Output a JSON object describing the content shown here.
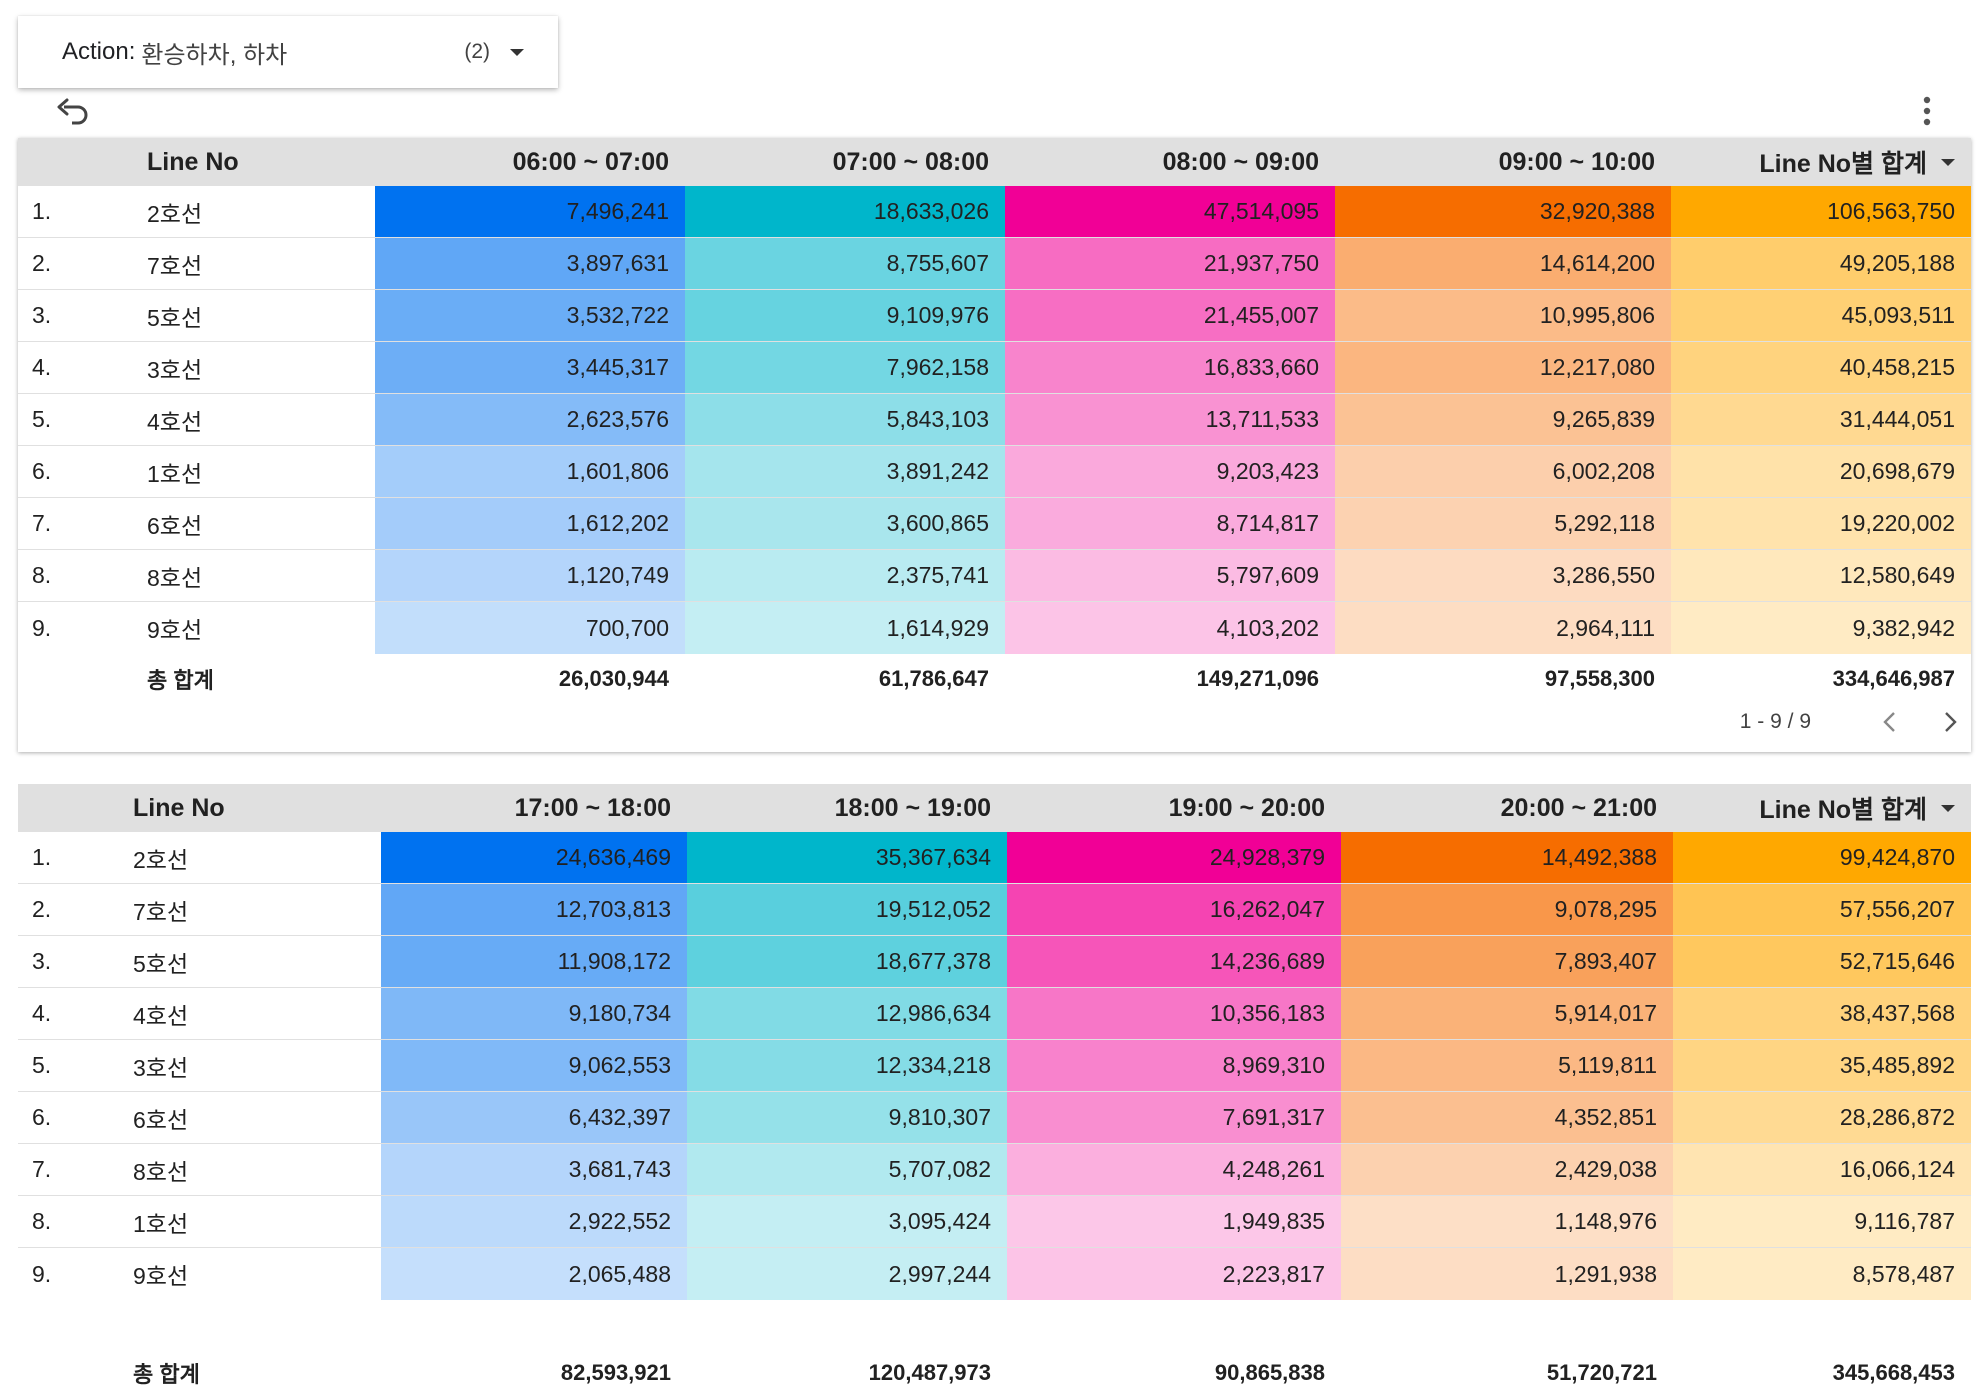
{
  "filter": {
    "label": "Action:",
    "values": "환승하차, 하차",
    "count": "(2)"
  },
  "icons": {
    "undo": "undo-icon",
    "more": "more-vert-icon",
    "dropdown": "caret-down-icon",
    "prev": "chevron-left-icon",
    "next": "chevron-right-icon"
  },
  "table1": {
    "headers": [
      "Line No",
      "06:00 ~ 07:00",
      "07:00 ~ 08:00",
      "08:00 ~ 09:00",
      "09:00 ~ 10:00",
      "Line No별 합계"
    ],
    "rows": [
      {
        "idx": "1.",
        "line": "2호선",
        "v": [
          "7,496,241",
          "18,633,026",
          "47,514,095",
          "32,920,388",
          "106,563,750"
        ]
      },
      {
        "idx": "2.",
        "line": "7호선",
        "v": [
          "3,897,631",
          "8,755,607",
          "21,937,750",
          "14,614,200",
          "49,205,188"
        ]
      },
      {
        "idx": "3.",
        "line": "5호선",
        "v": [
          "3,532,722",
          "9,109,976",
          "21,455,007",
          "10,995,806",
          "45,093,511"
        ]
      },
      {
        "idx": "4.",
        "line": "3호선",
        "v": [
          "3,445,317",
          "7,962,158",
          "16,833,660",
          "12,217,080",
          "40,458,215"
        ]
      },
      {
        "idx": "5.",
        "line": "4호선",
        "v": [
          "2,623,576",
          "5,843,103",
          "13,711,533",
          "9,265,839",
          "31,444,051"
        ]
      },
      {
        "idx": "6.",
        "line": "1호선",
        "v": [
          "1,601,806",
          "3,891,242",
          "9,203,423",
          "6,002,208",
          "20,698,679"
        ]
      },
      {
        "idx": "7.",
        "line": "6호선",
        "v": [
          "1,612,202",
          "3,600,865",
          "8,714,817",
          "5,292,118",
          "19,220,002"
        ]
      },
      {
        "idx": "8.",
        "line": "8호선",
        "v": [
          "1,120,749",
          "2,375,741",
          "5,797,609",
          "3,286,550",
          "12,580,649"
        ]
      },
      {
        "idx": "9.",
        "line": "9호선",
        "v": [
          "700,700",
          "1,614,929",
          "4,103,202",
          "2,964,111",
          "9,382,942"
        ]
      }
    ],
    "total_label": "총 합계",
    "totals": [
      "26,030,944",
      "61,786,647",
      "149,271,096",
      "97,558,300",
      "334,646,987"
    ],
    "pager": "1 - 9 / 9"
  },
  "table2": {
    "headers": [
      "Line No",
      "17:00 ~ 18:00",
      "18:00 ~ 19:00",
      "19:00 ~ 20:00",
      "20:00 ~ 21:00",
      "Line No별 합계"
    ],
    "rows": [
      {
        "idx": "1.",
        "line": "2호선",
        "v": [
          "24,636,469",
          "35,367,634",
          "24,928,379",
          "14,492,388",
          "99,424,870"
        ]
      },
      {
        "idx": "2.",
        "line": "7호선",
        "v": [
          "12,703,813",
          "19,512,052",
          "16,262,047",
          "9,078,295",
          "57,556,207"
        ]
      },
      {
        "idx": "3.",
        "line": "5호선",
        "v": [
          "11,908,172",
          "18,677,378",
          "14,236,689",
          "7,893,407",
          "52,715,646"
        ]
      },
      {
        "idx": "4.",
        "line": "4호선",
        "v": [
          "9,180,734",
          "12,986,634",
          "10,356,183",
          "5,914,017",
          "38,437,568"
        ]
      },
      {
        "idx": "5.",
        "line": "3호선",
        "v": [
          "9,062,553",
          "12,334,218",
          "8,969,310",
          "5,119,811",
          "35,485,892"
        ]
      },
      {
        "idx": "6.",
        "line": "6호선",
        "v": [
          "6,432,397",
          "9,810,307",
          "7,691,317",
          "4,352,851",
          "28,286,872"
        ]
      },
      {
        "idx": "7.",
        "line": "8호선",
        "v": [
          "3,681,743",
          "5,707,082",
          "4,248,261",
          "2,429,038",
          "16,066,124"
        ]
      },
      {
        "idx": "8.",
        "line": "1호선",
        "v": [
          "2,922,552",
          "3,095,424",
          "1,949,835",
          "1,148,976",
          "9,116,787"
        ]
      },
      {
        "idx": "9.",
        "line": "9호선",
        "v": [
          "2,065,488",
          "2,997,244",
          "2,223,817",
          "1,291,938",
          "8,578,487"
        ]
      }
    ],
    "total_label": "총 합계",
    "totals": [
      "82,593,921",
      "120,487,973",
      "90,865,838",
      "51,720,721",
      "345,668,453"
    ]
  },
  "colors": {
    "header_bg": "#e0e0e0",
    "heat_columns": [
      "#0072f0",
      "#00b6cb",
      "#f10096",
      "#f66d00",
      "#ffa800"
    ]
  }
}
